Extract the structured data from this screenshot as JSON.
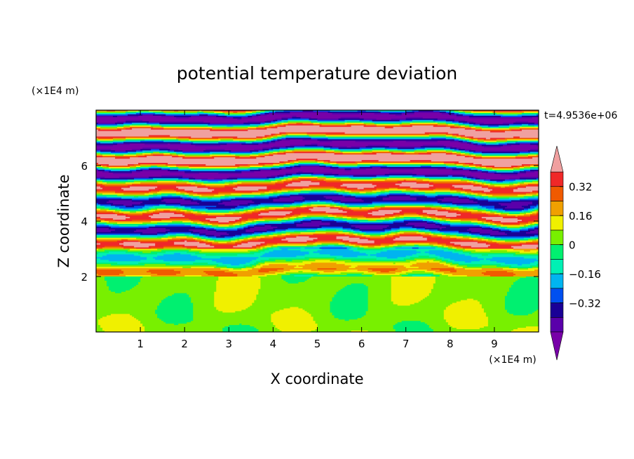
{
  "chart_data": {
    "type": "heatmap",
    "title": "potential temperature deviation",
    "xlabel": "X coordinate",
    "ylabel": "Z coordinate",
    "x_unit_label": "(×1E4 m)",
    "y_unit_label": "(×1E4 m)",
    "time_label": "t=4.9536e+06",
    "xlim": [
      0,
      10
    ],
    "ylim": [
      0,
      8
    ],
    "x_ticks": [
      1,
      2,
      3,
      4,
      5,
      6,
      7,
      8,
      9
    ],
    "y_ticks": [
      2,
      4,
      6
    ],
    "colorbar": {
      "levels": [
        -0.48,
        -0.4,
        -0.32,
        -0.24,
        -0.16,
        -0.08,
        0,
        0.08,
        0.16,
        0.24,
        0.32,
        0.4
      ],
      "tick_labels": [
        "0.32",
        "0.16",
        "0",
        "−0.16",
        "−0.32"
      ],
      "tick_values": [
        0.32,
        0.16,
        0,
        -0.16,
        -0.32
      ],
      "colors": [
        "#7800a8",
        "#5a00aa",
        "#1a0096",
        "#0050f0",
        "#00b4f0",
        "#00f0b4",
        "#00f070",
        "#78f000",
        "#f0f000",
        "#f0a000",
        "#f05a00",
        "#f02828",
        "#f0a0a0"
      ]
    }
  }
}
